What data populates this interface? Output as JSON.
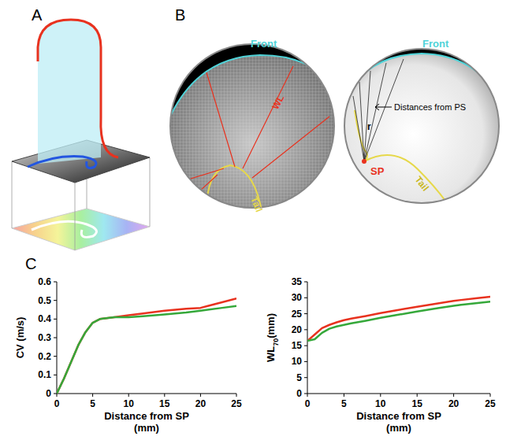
{
  "diagram": {
    "panels": [
      "A",
      "B",
      "C"
    ],
    "b_left": {
      "front": "Front",
      "wl": "WL",
      "tail": "Tail"
    },
    "b_right": {
      "front": "Front",
      "distances": "Distances from PS",
      "r": "r",
      "sp": "SP",
      "tail": "Tail"
    }
  },
  "chart_data": [
    {
      "type": "line",
      "xlabel": "Distance from SP (mm)",
      "ylabel": "CV (m/s)",
      "x": [
        0,
        1,
        2,
        3,
        4,
        5,
        6,
        8,
        10,
        12,
        15,
        18,
        20,
        21,
        23,
        25
      ],
      "xlim": [
        0,
        25
      ],
      "xticks": [
        0,
        5,
        10,
        15,
        20,
        25
      ],
      "ylim": [
        0,
        0.6
      ],
      "yticks": [
        0,
        0.1,
        0.2,
        0.3,
        0.4,
        0.5,
        0.6
      ],
      "grid": false,
      "series": [
        {
          "color": "#e8321f",
          "values": [
            0,
            0.08,
            0.17,
            0.26,
            0.33,
            0.38,
            0.4,
            0.41,
            0.42,
            0.43,
            0.445,
            0.455,
            0.46,
            0.47,
            0.49,
            0.51
          ]
        },
        {
          "color": "#35a83a",
          "values": [
            0,
            0.08,
            0.17,
            0.26,
            0.33,
            0.38,
            0.4,
            0.41,
            0.41,
            0.415,
            0.425,
            0.435,
            0.445,
            0.45,
            0.46,
            0.47
          ]
        }
      ]
    },
    {
      "type": "line",
      "xlabel": "Distance from SP (mm)",
      "ylabel": "WL70(mm)",
      "x": [
        0,
        1,
        2,
        3,
        4,
        5,
        6,
        8,
        10,
        12,
        15,
        18,
        20,
        21,
        23,
        25
      ],
      "xlim": [
        0,
        25
      ],
      "xticks": [
        0,
        5,
        10,
        15,
        20,
        25
      ],
      "ylim": [
        0,
        35
      ],
      "yticks": [
        0,
        5,
        10,
        15,
        20,
        25,
        30,
        35
      ],
      "grid": false,
      "series": [
        {
          "color": "#e8321f",
          "values": [
            16.5,
            18.5,
            20.5,
            21.5,
            22.3,
            23,
            23.5,
            24.3,
            25.2,
            26,
            27.2,
            28.3,
            29,
            29.3,
            29.8,
            30.3
          ]
        },
        {
          "color": "#35a83a",
          "values": [
            16.5,
            17,
            19,
            20.3,
            21,
            21.5,
            22,
            22.8,
            23.7,
            24.5,
            25.7,
            26.8,
            27.5,
            27.8,
            28.3,
            28.8
          ]
        }
      ]
    }
  ]
}
